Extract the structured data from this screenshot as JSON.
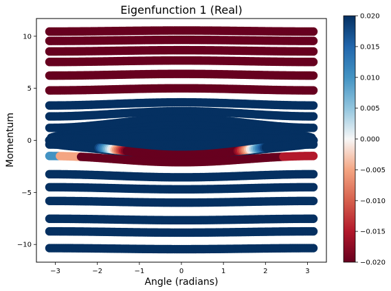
{
  "chart_data": {
    "type": "scatter",
    "title": "Eigenfunction 1 (Real)",
    "xlabel": "Angle (radians)",
    "ylabel": "Momentum",
    "xlim": [
      -3.45,
      3.45
    ],
    "ylim": [
      -11.7,
      11.7
    ],
    "x_ticks": [
      -3,
      -2,
      -1,
      0,
      1,
      2,
      3
    ],
    "y_ticks": [
      -10,
      -5,
      0,
      5,
      10
    ],
    "grid": false,
    "colormap": "RdBu",
    "color_range": [
      -0.02,
      0.02
    ],
    "colorbar_ticks": [
      "0.020",
      "0.015",
      "0.010",
      "0.005",
      "0.000",
      "−0.005",
      "−0.010",
      "−0.015",
      "−0.020"
    ],
    "colorbar_tick_values": [
      0.02,
      0.015,
      0.01,
      0.005,
      0.0,
      -0.005,
      -0.01,
      -0.015,
      -0.02
    ],
    "x_range": [
      -3.14,
      3.14
    ],
    "trajectories": [
      {
        "kind": "rotation",
        "p0": 10.5,
        "amp": 0.05,
        "value": -0.02
      },
      {
        "kind": "rotation",
        "p0": 9.6,
        "amp": 0.05,
        "value": -0.02
      },
      {
        "kind": "rotation",
        "p0": 8.6,
        "amp": 0.06,
        "value": -0.02
      },
      {
        "kind": "rotation",
        "p0": 7.6,
        "amp": 0.07,
        "value": -0.02
      },
      {
        "kind": "rotation",
        "p0": 6.3,
        "amp": 0.08,
        "value": -0.02
      },
      {
        "kind": "rotation",
        "p0": 4.9,
        "amp": 0.1,
        "value": -0.02
      },
      {
        "kind": "rotation",
        "p0": 3.5,
        "amp": 0.15,
        "value": 0.02
      },
      {
        "kind": "rotation",
        "p0": 2.55,
        "amp": 0.25,
        "value": 0.02
      },
      {
        "kind": "rotation",
        "p0": 1.65,
        "amp": 0.45,
        "value": 0.02
      },
      {
        "kind": "libration",
        "p0": 1.1,
        "value": 0.02
      },
      {
        "kind": "libration",
        "p0": 0.8,
        "value": 0.02
      },
      {
        "kind": "libration",
        "p0": 0.55,
        "value": 0.02
      },
      {
        "kind": "libration",
        "p0": 0.3,
        "value": 0.02
      },
      {
        "kind": "rotation",
        "p0": -0.9,
        "amp": -0.5,
        "value": "mixed-a"
      },
      {
        "kind": "rotation",
        "p0": -1.8,
        "amp": -0.3,
        "value": "mixed-b"
      },
      {
        "kind": "rotation",
        "p0": -3.4,
        "amp": -0.15,
        "value": 0.02
      },
      {
        "kind": "rotation",
        "p0": -4.6,
        "amp": -0.1,
        "value": 0.02
      },
      {
        "kind": "rotation",
        "p0": -5.9,
        "amp": -0.08,
        "value": 0.02
      },
      {
        "kind": "rotation",
        "p0": -7.6,
        "amp": -0.07,
        "value": 0.02
      },
      {
        "kind": "rotation",
        "p0": -8.8,
        "amp": -0.06,
        "value": 0.02
      },
      {
        "kind": "rotation",
        "p0": -10.4,
        "amp": -0.05,
        "value": 0.02
      }
    ]
  }
}
